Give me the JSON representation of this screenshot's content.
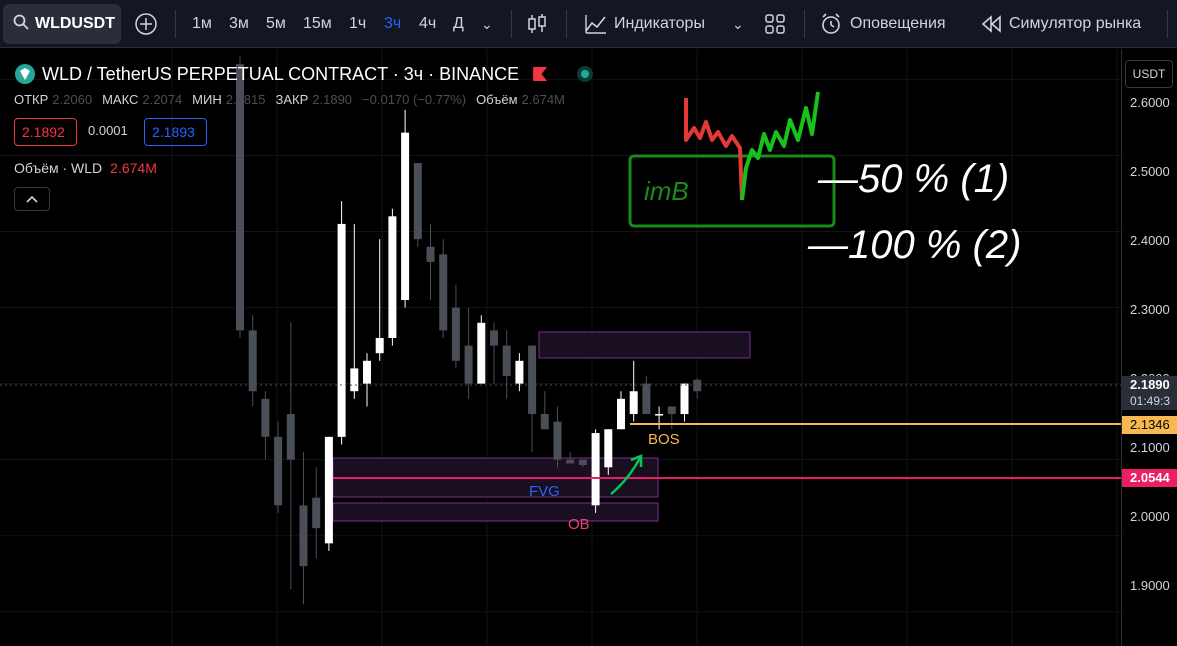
{
  "toolbar": {
    "symbol": "WLDUSDT",
    "intervals": [
      "1м",
      "3м",
      "5м",
      "15м",
      "1ч",
      "3ч",
      "4ч",
      "Д"
    ],
    "active_interval": "3ч",
    "indicators_label": "Индикаторы",
    "alerts_label": "Оповещения",
    "replay_label": "Симулятор рынка"
  },
  "legend": {
    "title": "WLD / TetherUS PERPETUAL CONTRACT · 3ч · BINANCE",
    "open_label": "ОТКР",
    "open": "2.2060",
    "high_label": "МАКС",
    "high": "2.2074",
    "low_label": "МИН",
    "low": "2.1815",
    "close_label": "ЗАКР",
    "close": "2.1890",
    "change": "−0.0170 (−0.77%)",
    "volume_label": "Объём",
    "volume": "2.674M",
    "bid": "2.1892",
    "spread": "0.0001",
    "ask": "2.1893",
    "volume_indicator_label": "Объём · WLD",
    "volume_indicator_value": "2.674M",
    "collapse_icon": "chevron-up-icon"
  },
  "price_axis": {
    "currency": "USDT",
    "ticks": [
      "2.6000",
      "2.5000",
      "2.4000",
      "2.3000",
      "2.1000",
      "2.0000",
      "1.9000"
    ],
    "current_price": "2.1890",
    "countdown": "01:49:3",
    "bos_level": "2.1346",
    "red_level": "2.0544",
    "hidden_tick": "2.2000"
  },
  "annotations": {
    "bos": "BOS",
    "fvg": "FVG",
    "ob": "OB",
    "note_box": "imB",
    "note_line1": "—50 % (1)",
    "note_line2": "—100 % (2)"
  },
  "colors": {
    "background": "#000000",
    "toolbar": "#131722",
    "bull": "#ffffff",
    "bear": "#4a4e57",
    "accent_blue": "#2962ff",
    "bos_line": "#f7b851",
    "red_line": "#e91e63",
    "zone_purple": "#9c27b0",
    "ob_pink": "#ec407a",
    "fvg_blue": "#2962ff",
    "arrow_green": "#00c853",
    "note_green": "#1b8a1b",
    "note_red": "#e53935"
  },
  "chart_data": {
    "type": "candlestick",
    "ylim": [
      1.855,
      2.64
    ],
    "ohlc": [
      [
        2.62,
        2.63,
        2.26,
        2.27
      ],
      [
        2.27,
        2.29,
        2.17,
        2.19
      ],
      [
        2.18,
        2.19,
        2.1,
        2.13
      ],
      [
        2.13,
        2.15,
        2.03,
        2.04
      ],
      [
        2.16,
        2.28,
        1.93,
        2.1
      ],
      [
        2.04,
        2.11,
        1.91,
        1.96
      ],
      [
        2.05,
        2.09,
        1.97,
        2.01
      ],
      [
        1.99,
        2.13,
        1.98,
        2.13
      ],
      [
        2.13,
        2.44,
        2.12,
        2.41
      ],
      [
        2.19,
        2.41,
        2.18,
        2.22
      ],
      [
        2.2,
        2.24,
        2.17,
        2.23
      ],
      [
        2.24,
        2.39,
        2.23,
        2.26
      ],
      [
        2.26,
        2.43,
        2.25,
        2.42
      ],
      [
        2.31,
        2.56,
        2.3,
        2.53
      ],
      [
        2.49,
        2.49,
        2.38,
        2.39
      ],
      [
        2.38,
        2.41,
        2.31,
        2.36
      ],
      [
        2.37,
        2.39,
        2.26,
        2.27
      ],
      [
        2.3,
        2.33,
        2.22,
        2.23
      ],
      [
        2.25,
        2.3,
        2.18,
        2.2
      ],
      [
        2.2,
        2.29,
        2.2,
        2.28
      ],
      [
        2.27,
        2.28,
        2.2,
        2.25
      ],
      [
        2.25,
        2.27,
        2.18,
        2.21
      ],
      [
        2.2,
        2.24,
        2.19,
        2.23
      ],
      [
        2.25,
        2.25,
        2.11,
        2.16
      ],
      [
        2.16,
        2.19,
        2.14,
        2.14
      ],
      [
        2.15,
        2.17,
        2.09,
        2.1
      ],
      [
        2.1,
        2.11,
        2.095,
        2.095
      ],
      [
        2.1,
        2.1,
        2.09,
        2.093
      ],
      [
        2.04,
        2.14,
        2.03,
        2.135
      ],
      [
        2.09,
        2.14,
        2.08,
        2.14
      ],
      [
        2.14,
        2.19,
        2.14,
        2.18
      ],
      [
        2.16,
        2.23,
        2.15,
        2.19
      ],
      [
        2.2,
        2.21,
        2.16,
        2.16
      ],
      [
        2.16,
        2.17,
        2.14,
        2.16
      ],
      [
        2.17,
        2.17,
        2.14,
        2.16
      ],
      [
        2.16,
        2.2,
        2.15,
        2.2
      ],
      [
        2.205,
        2.207,
        2.18,
        2.19
      ]
    ]
  }
}
